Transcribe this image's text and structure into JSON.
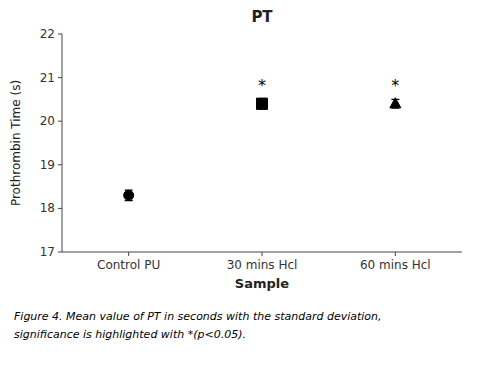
{
  "chart_data": {
    "type": "point",
    "title": "PT",
    "x_label": "Sample",
    "y_label": "Prothrombin Time (s)",
    "categories": [
      "Control PU",
      "30 mins Hcl",
      "60 mins Hcl"
    ],
    "values": [
      18.3,
      20.4,
      20.4
    ],
    "errors": [
      0.12,
      0.12,
      0.1
    ],
    "marker": [
      "circle",
      "square",
      "triangle"
    ],
    "color": "#000000",
    "ylim": [
      17,
      22
    ],
    "yticks": [
      17,
      18,
      19,
      20,
      21,
      22
    ],
    "grid": false,
    "annotations": [
      {
        "text": "*",
        "category": "30 mins Hcl"
      },
      {
        "text": "*",
        "category": "60 mins Hcl"
      }
    ],
    "caption": [
      "Figure 4. Mean value of PT in seconds with the standard deviation,",
      "significance is highlighted with *(p<0.05)."
    ]
  }
}
